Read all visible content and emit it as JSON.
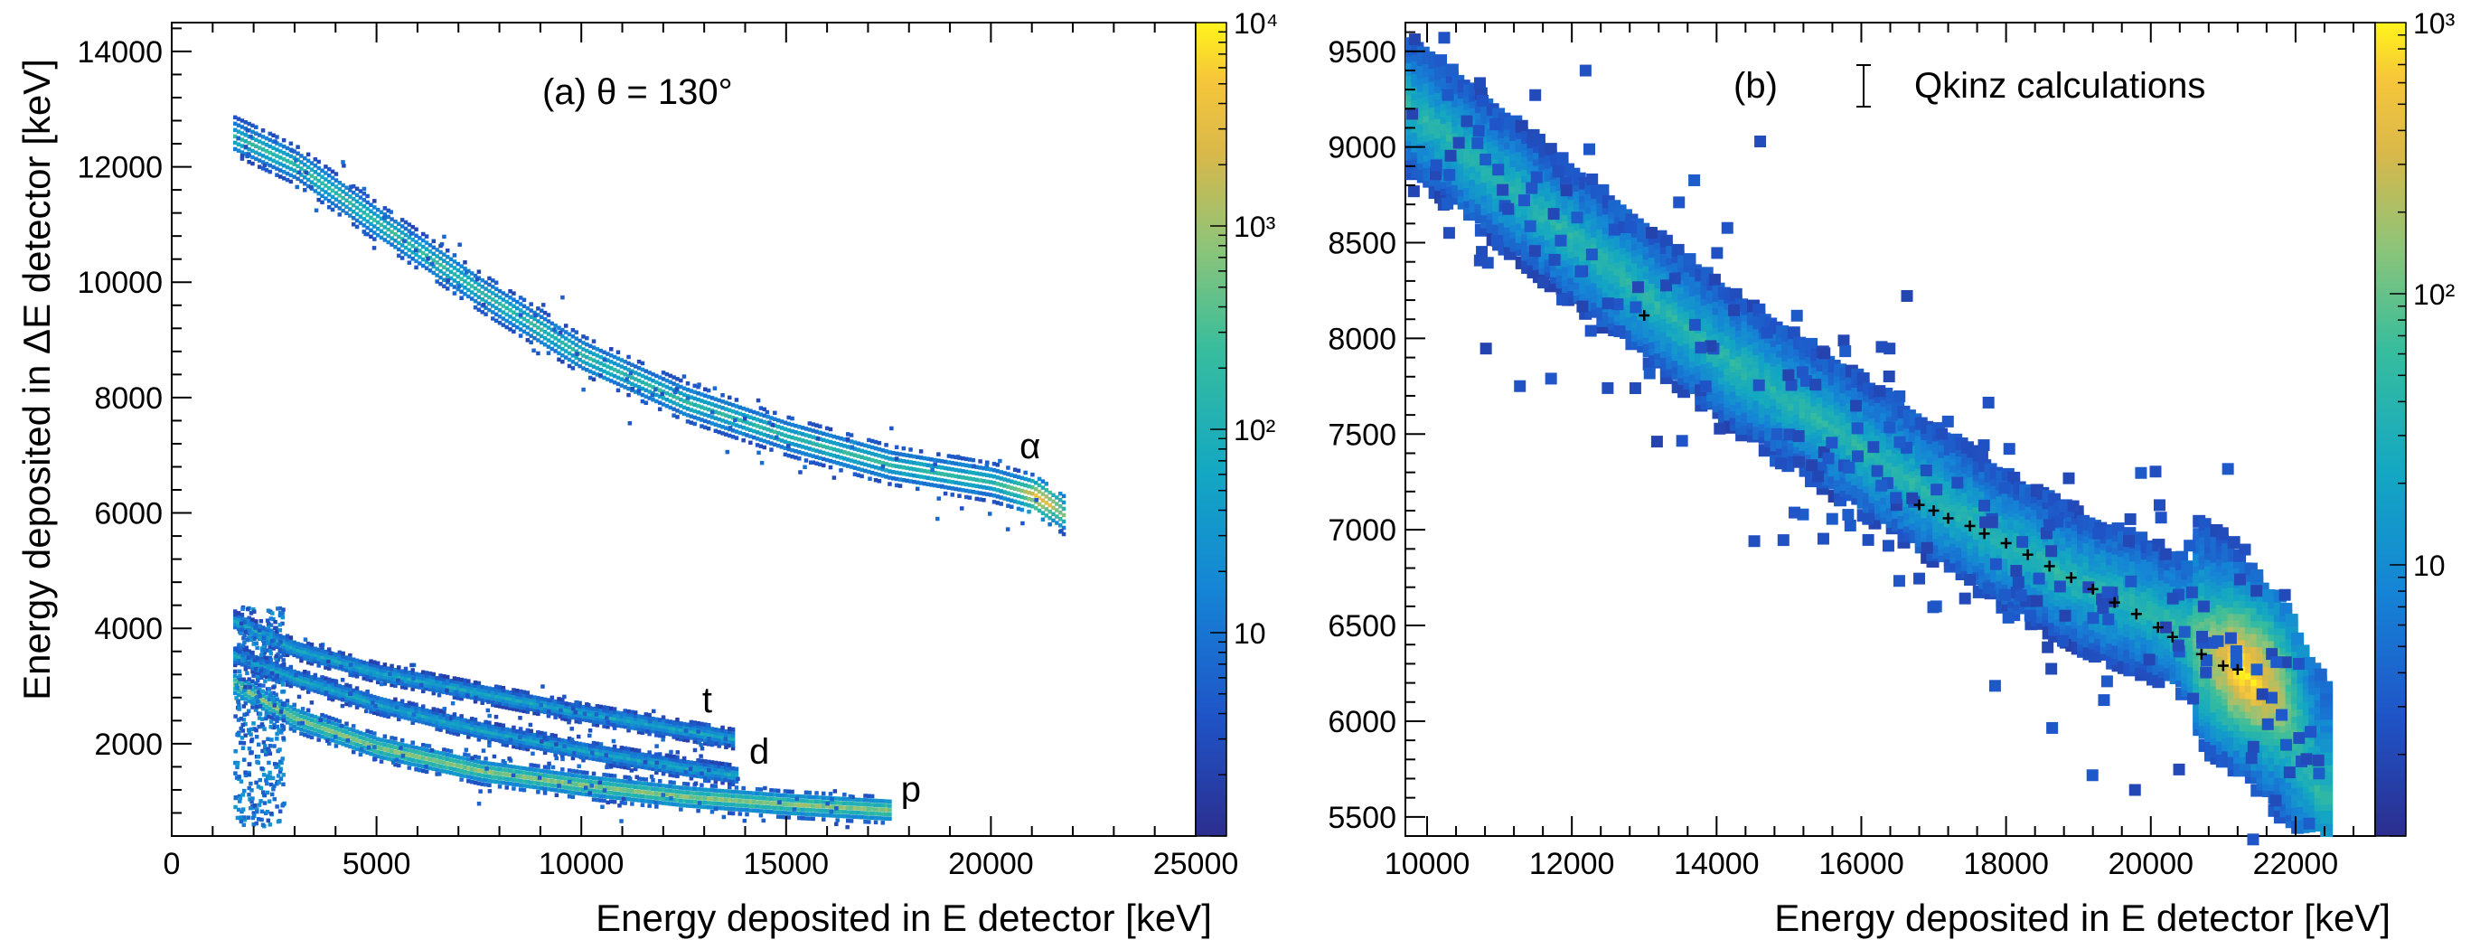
{
  "figure": {
    "panels": [
      {
        "id": "a",
        "annotation": "(a) θ = 130°",
        "particle_labels": [
          {
            "text": "α",
            "x": 20700,
            "y": 6950
          },
          {
            "text": "t",
            "x": 12950,
            "y": 2550
          },
          {
            "text": "d",
            "x": 14100,
            "y": 1650
          },
          {
            "text": "p",
            "x": 17800,
            "y": 1000
          }
        ]
      },
      {
        "id": "b",
        "annotation": "(b)",
        "legend_label": "Qkinz calculations"
      }
    ]
  },
  "chart_data": [
    {
      "type": "heatmap",
      "title": "(a) θ = 130°",
      "xlabel": "Energy deposited in E detector [keV]",
      "ylabel": "Energy deposited in ΔE detector [keV]",
      "xlim": [
        0,
        25000
      ],
      "ylim": [
        400,
        14500
      ],
      "x_ticks": [
        0,
        5000,
        10000,
        15000,
        20000,
        25000
      ],
      "x_tick_labels": [
        "0",
        "5000",
        "10000",
        "15000",
        "20000",
        "25000"
      ],
      "y_ticks": [
        2000,
        4000,
        6000,
        8000,
        10000,
        12000,
        14000
      ],
      "y_tick_labels": [
        "2000",
        "4000",
        "6000",
        "8000",
        "10000",
        "12000",
        "14000"
      ],
      "colorbar": {
        "scale": "log",
        "range": [
          1,
          10000
        ],
        "tick_values": [
          10,
          1000,
          10000
        ],
        "tick_labels": [
          "10",
          "10³",
          "10⁴"
        ],
        "minor_label": "10²",
        "minor_label_value": 100
      },
      "bands": [
        {
          "name": "α",
          "points": [
            [
              1500,
              12500
            ],
            [
              3000,
              12000
            ],
            [
              5000,
              11000
            ],
            [
              7500,
              9800
            ],
            [
              10000,
              8700
            ],
            [
              12500,
              7900
            ],
            [
              15000,
              7300
            ],
            [
              17500,
              6800
            ],
            [
              20000,
              6500
            ],
            [
              21000,
              6300
            ],
            [
              21800,
              5900
            ]
          ],
          "peak": [
            21200,
            6200
          ]
        },
        {
          "name": "t",
          "points": [
            [
              1500,
              4100
            ],
            [
              3000,
              3600
            ],
            [
              5000,
              3200
            ],
            [
              7500,
              2850
            ],
            [
              10000,
              2500
            ],
            [
              12500,
              2200
            ],
            [
              13700,
              2050
            ]
          ]
        },
        {
          "name": "d",
          "points": [
            [
              1500,
              3500
            ],
            [
              3000,
              3100
            ],
            [
              5000,
              2650
            ],
            [
              7500,
              2200
            ],
            [
              10000,
              1850
            ],
            [
              12500,
              1550
            ],
            [
              13800,
              1420
            ]
          ]
        },
        {
          "name": "p",
          "points": [
            [
              1500,
              3000
            ],
            [
              3000,
              2400
            ],
            [
              5000,
              1900
            ],
            [
              7500,
              1500
            ],
            [
              10000,
              1250
            ],
            [
              12500,
              1050
            ],
            [
              15000,
              920
            ],
            [
              17500,
              820
            ]
          ]
        }
      ]
    },
    {
      "type": "heatmap",
      "title": "(b)",
      "legend": [
        "Qkinz calculations"
      ],
      "xlabel": "Energy deposited in E detector [keV]",
      "xlim": [
        9700,
        23100
      ],
      "ylim": [
        5400,
        9650
      ],
      "x_ticks": [
        10000,
        12000,
        14000,
        16000,
        18000,
        20000,
        22000
      ],
      "x_tick_labels": [
        "10000",
        "12000",
        "14000",
        "16000",
        "18000",
        "20000",
        "22000"
      ],
      "y_ticks": [
        5500,
        6000,
        6500,
        7000,
        7500,
        8000,
        8500,
        9000,
        9500
      ],
      "y_tick_labels": [
        "5500",
        "6000",
        "6500",
        "7000",
        "7500",
        "8000",
        "8500",
        "9000",
        "9500"
      ],
      "colorbar": {
        "scale": "log",
        "range": [
          1,
          1000
        ],
        "tick_values": [
          10,
          100,
          1000
        ],
        "tick_labels": [
          "10",
          "10²",
          "10³"
        ]
      },
      "band": {
        "name": "α",
        "points": [
          [
            9700,
            9200
          ],
          [
            11000,
            8800
          ],
          [
            12000,
            8500
          ],
          [
            13000,
            8200
          ],
          [
            14000,
            7900
          ],
          [
            15000,
            7650
          ],
          [
            16000,
            7400
          ],
          [
            17000,
            7150
          ],
          [
            18000,
            6900
          ],
          [
            19000,
            6700
          ],
          [
            20000,
            6550
          ],
          [
            21000,
            6350
          ],
          [
            21800,
            6000
          ],
          [
            22300,
            5600
          ]
        ],
        "peak": [
          21300,
          6250
        ]
      },
      "qkinz_points": [
        {
          "x": 13000,
          "y": 8120
        },
        {
          "x": 16800,
          "y": 7130
        },
        {
          "x": 17000,
          "y": 7100
        },
        {
          "x": 17200,
          "y": 7060
        },
        {
          "x": 17500,
          "y": 7020
        },
        {
          "x": 17700,
          "y": 6980
        },
        {
          "x": 18000,
          "y": 6930
        },
        {
          "x": 18300,
          "y": 6870
        },
        {
          "x": 18600,
          "y": 6810
        },
        {
          "x": 18900,
          "y": 6750
        },
        {
          "x": 19200,
          "y": 6690
        },
        {
          "x": 19500,
          "y": 6620
        },
        {
          "x": 19800,
          "y": 6560
        },
        {
          "x": 20100,
          "y": 6490
        },
        {
          "x": 20300,
          "y": 6440
        },
        {
          "x": 20700,
          "y": 6350
        },
        {
          "x": 21000,
          "y": 6290
        },
        {
          "x": 21200,
          "y": 6270
        }
      ]
    }
  ]
}
